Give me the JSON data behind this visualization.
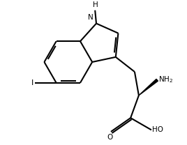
{
  "bg_color": "#ffffff",
  "lc": "#000000",
  "lw": 1.5,
  "fs": 8.0,
  "BL": 0.19,
  "bcx": 0.3,
  "bcy": 0.6,
  "xlim": [
    -0.05,
    1.05
  ],
  "ylim": [
    -0.05,
    1.05
  ]
}
